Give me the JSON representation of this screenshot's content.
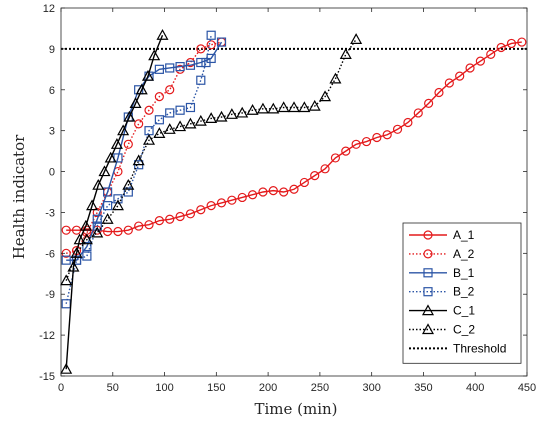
{
  "chart_data": {
    "type": "line",
    "xlabel": "Time (min)",
    "ylabel": "Health indicator",
    "xlim": [
      0,
      450
    ],
    "ylim": [
      -15,
      12
    ],
    "xticks": [
      0,
      50,
      100,
      150,
      200,
      250,
      300,
      350,
      400,
      450
    ],
    "yticks": [
      -15,
      -12,
      -9,
      -6,
      -3,
      0,
      3,
      6,
      9,
      12
    ],
    "grid": false,
    "legend_position": "bottom-right",
    "threshold": {
      "name": "Threshold",
      "y": 9,
      "color": "#000000",
      "style": "dotted"
    },
    "series": [
      {
        "name": "A_1",
        "color": "#e41a1c",
        "marker": "circle",
        "style": "solid",
        "x": [
          5,
          15,
          25,
          35,
          45,
          55,
          65,
          75,
          85,
          95,
          105,
          115,
          125,
          135,
          145,
          155,
          165,
          175,
          185,
          195,
          205,
          215,
          225,
          235,
          245,
          255,
          265,
          275,
          285,
          295,
          305,
          315,
          325,
          335,
          345,
          355,
          365,
          375,
          385,
          395,
          405,
          415,
          425,
          435,
          445
        ],
        "y": [
          -4.3,
          -4.3,
          -4.3,
          -4.3,
          -4.4,
          -4.4,
          -4.3,
          -4.0,
          -3.9,
          -3.6,
          -3.5,
          -3.3,
          -3.1,
          -2.8,
          -2.5,
          -2.3,
          -2.1,
          -1.9,
          -1.7,
          -1.5,
          -1.4,
          -1.5,
          -1.3,
          -0.8,
          -0.3,
          0.2,
          1.0,
          1.5,
          2.0,
          2.2,
          2.5,
          2.7,
          3.1,
          3.6,
          4.3,
          5.0,
          5.8,
          6.5,
          7.0,
          7.6,
          8.1,
          8.6,
          9.1,
          9.4,
          9.5
        ]
      },
      {
        "name": "A_2",
        "color": "#e41a1c",
        "marker": "circle",
        "style": "dotted",
        "x": [
          5,
          15,
          25,
          35,
          45,
          55,
          65,
          75,
          85,
          95,
          105,
          115,
          125,
          135,
          145,
          155
        ],
        "y": [
          -6.0,
          -5.8,
          -4.5,
          -3.0,
          -1.5,
          0.0,
          2.0,
          3.5,
          4.5,
          5.5,
          6.0,
          7.5,
          8.0,
          9.0,
          9.3,
          9.5
        ]
      },
      {
        "name": "B_1",
        "color": "#2b55a6",
        "marker": "square",
        "style": "solid",
        "x": [
          5,
          15,
          25,
          35,
          45,
          55,
          65,
          75,
          85,
          95,
          105,
          115,
          125,
          135,
          145,
          155
        ],
        "y": [
          -6.5,
          -6.5,
          -5.5,
          -3.5,
          -1.5,
          1.0,
          4.0,
          6.0,
          7.0,
          7.5,
          7.6,
          7.7,
          7.8,
          8.0,
          8.3,
          9.5
        ]
      },
      {
        "name": "B_2",
        "color": "#2b55a6",
        "marker": "square",
        "style": "dotted",
        "x": [
          5,
          15,
          25,
          35,
          45,
          55,
          65,
          75,
          85,
          95,
          105,
          115,
          125,
          135,
          140,
          145
        ],
        "y": [
          -9.7,
          -6.5,
          -6.2,
          -4.0,
          -2.5,
          -2.0,
          -1.5,
          0.5,
          3.0,
          3.8,
          4.3,
          4.5,
          4.7,
          6.7,
          8.0,
          10.0
        ]
      },
      {
        "name": "C_1",
        "color": "#000000",
        "marker": "triangle",
        "style": "solid",
        "x": [
          5,
          12,
          18,
          24,
          30,
          36,
          42,
          48,
          54,
          60,
          66,
          72,
          78,
          84,
          90,
          98
        ],
        "y": [
          -14.5,
          -7.0,
          -5.0,
          -4.0,
          -2.5,
          -1.0,
          0.0,
          1.0,
          2.0,
          3.0,
          4.0,
          5.0,
          6.0,
          7.0,
          8.5,
          10.0
        ]
      },
      {
        "name": "C_2",
        "color": "#000000",
        "marker": "triangle",
        "style": "dotted",
        "x": [
          5,
          15,
          25,
          35,
          45,
          55,
          65,
          75,
          85,
          95,
          105,
          115,
          125,
          135,
          145,
          155,
          165,
          175,
          185,
          195,
          205,
          215,
          225,
          235,
          245,
          255,
          265,
          275,
          285
        ],
        "y": [
          -8.0,
          -6.0,
          -5.0,
          -4.5,
          -3.5,
          -2.5,
          -1.0,
          0.8,
          2.3,
          2.8,
          3.1,
          3.3,
          3.5,
          3.7,
          3.9,
          4.0,
          4.2,
          4.3,
          4.5,
          4.6,
          4.6,
          4.7,
          4.7,
          4.7,
          4.8,
          5.5,
          6.8,
          8.6,
          9.7
        ]
      }
    ]
  }
}
